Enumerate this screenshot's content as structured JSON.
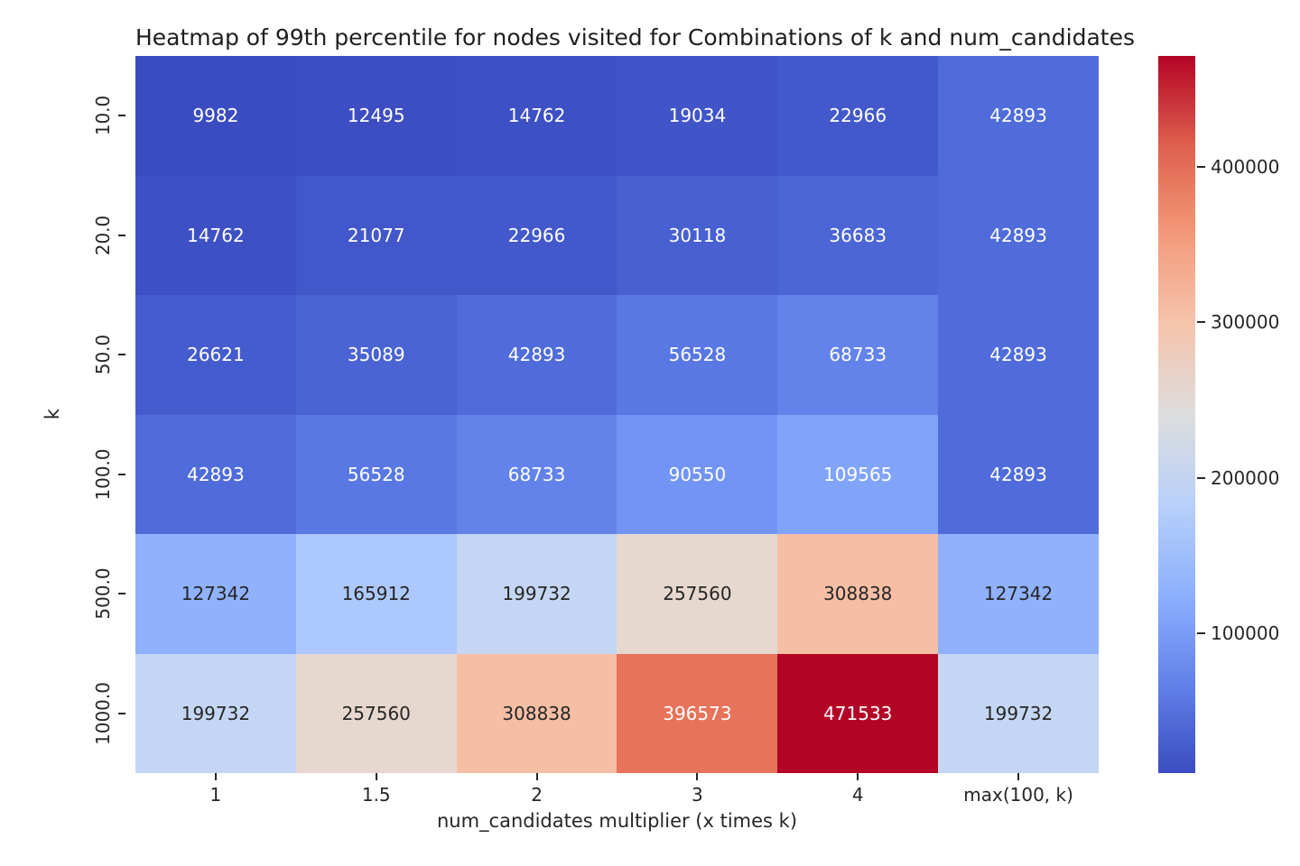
{
  "chart_data": {
    "type": "heatmap",
    "title": "Heatmap of 99th percentile for nodes visited for Combinations of k and num_candidates",
    "xlabel": "num_candidates multiplier (x times k)",
    "ylabel": "k",
    "x_categories": [
      "1",
      "1.5",
      "2",
      "3",
      "4",
      "max(100, k)"
    ],
    "y_categories": [
      "10.0",
      "20.0",
      "50.0",
      "100.0",
      "500.0",
      "1000.0"
    ],
    "values": [
      [
        9982,
        12495,
        14762,
        19034,
        22966,
        42893
      ],
      [
        14762,
        21077,
        22966,
        30118,
        36683,
        42893
      ],
      [
        26621,
        35089,
        42893,
        56528,
        68733,
        42893
      ],
      [
        42893,
        56528,
        68733,
        90550,
        109565,
        42893
      ],
      [
        127342,
        165912,
        199732,
        257560,
        308838,
        127342
      ],
      [
        199732,
        257560,
        308838,
        396573,
        471533,
        199732
      ]
    ],
    "cell_colors": [
      [
        "#3B4CC0",
        "#3D4EC2",
        "#3E51C4",
        "#4155C8",
        "#4359CB",
        "#506CDA"
      ],
      [
        "#3E51C4",
        "#4257C9",
        "#4359CB",
        "#4860D0",
        "#4C66D5",
        "#506CDA"
      ],
      [
        "#455CCE",
        "#4B64D4",
        "#506CDA",
        "#5978E3",
        "#6383EA",
        "#506CDA"
      ],
      [
        "#506CDA",
        "#5978E3",
        "#6383EA",
        "#7295F5",
        "#81A4FB",
        "#506CDA"
      ],
      [
        "#8FB1FE",
        "#ACC8FD",
        "#C4D6F3",
        "#E6D7CF",
        "#F6BEA4",
        "#8FB1FE"
      ],
      [
        "#C4D6F3",
        "#E6D7CF",
        "#F6BEA4",
        "#E6735A",
        "#B40426",
        "#C4D6F3"
      ]
    ],
    "cell_text_colors": [
      [
        "#FFFFFF",
        "#FFFFFF",
        "#FFFFFF",
        "#FFFFFF",
        "#FFFFFF",
        "#FFFFFF"
      ],
      [
        "#FFFFFF",
        "#FFFFFF",
        "#FFFFFF",
        "#FFFFFF",
        "#FFFFFF",
        "#FFFFFF"
      ],
      [
        "#FFFFFF",
        "#FFFFFF",
        "#FFFFFF",
        "#FFFFFF",
        "#FFFFFF",
        "#FFFFFF"
      ],
      [
        "#FFFFFF",
        "#FFFFFF",
        "#FFFFFF",
        "#FFFFFF",
        "#FFFFFF",
        "#FFFFFF"
      ],
      [
        "#262626",
        "#262626",
        "#262626",
        "#262626",
        "#262626",
        "#262626"
      ],
      [
        "#262626",
        "#262626",
        "#262626",
        "#FFFFFF",
        "#FFFFFF",
        "#262626"
      ]
    ],
    "colormap": "coolwarm",
    "vmin": 9982,
    "vmax": 471533,
    "grid": false,
    "colorbar": {
      "position": "right",
      "tick_values": [
        100000,
        200000,
        300000,
        400000
      ],
      "tick_labels": [
        "100000",
        "200000",
        "300000",
        "400000"
      ],
      "gradient_stops_bottom_to_top": [
        "#3B4CC0",
        "#6282EA",
        "#8DB0FE",
        "#B8D0F9",
        "#DDDDDD",
        "#F5C4AD",
        "#F49A7B",
        "#DE604D",
        "#B40426"
      ]
    }
  }
}
